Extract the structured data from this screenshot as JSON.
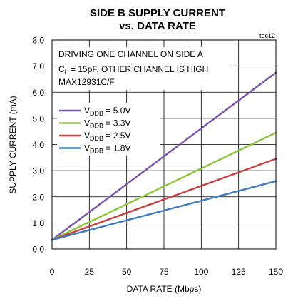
{
  "chart_data": {
    "type": "line",
    "title_line1": "SIDE B SUPPLY CURRENT",
    "title_line2": "vs. DATA RATE",
    "figure_tag": "toc12",
    "xlabel": "DATA RATE (Mbps)",
    "ylabel": "SUPPLY CURRENT (mA)",
    "xlim": [
      0,
      150
    ],
    "ylim": [
      0.0,
      8.0
    ],
    "x_ticks": [
      0,
      25,
      50,
      75,
      100,
      125,
      150
    ],
    "y_ticks": [
      "0.0",
      "1.0",
      "2.0",
      "3.0",
      "4.0",
      "5.0",
      "6.0",
      "7.0",
      "8.0"
    ],
    "grid": true,
    "annotations": [
      "DRIVING ONE CHANNEL ON SIDE A",
      "C_L = 15pF, OTHER CHANNEL IS HIGH",
      "MAX12931C/F"
    ],
    "legend_placement": "upper-left",
    "series": [
      {
        "name": "V_DDB = 5.0V",
        "color": "#7b52a5",
        "x": [
          0,
          150
        ],
        "y": [
          0.35,
          6.75
        ]
      },
      {
        "name": "V_DDB = 3.3V",
        "color": "#8dc63f",
        "x": [
          0,
          150
        ],
        "y": [
          0.35,
          4.45
        ]
      },
      {
        "name": "V_DDB = 2.5V",
        "color": "#c8403f",
        "x": [
          0,
          150
        ],
        "y": [
          0.35,
          3.45
        ]
      },
      {
        "name": "V_DDB = 1.8V",
        "color": "#3f7bc0",
        "x": [
          0,
          150
        ],
        "y": [
          0.35,
          2.6
        ]
      }
    ]
  }
}
